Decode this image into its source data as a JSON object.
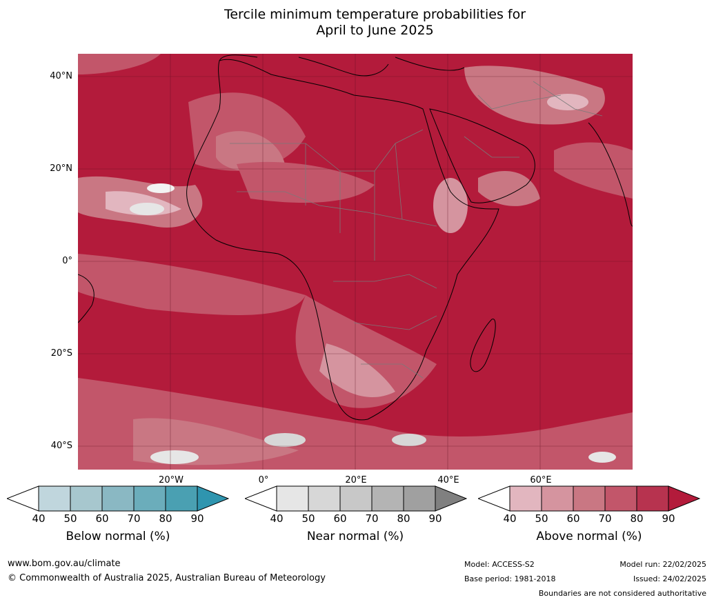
{
  "title": {
    "line1": "Tercile minimum temperature probabilities for",
    "line2": "April to June 2025"
  },
  "map": {
    "lat_labels": [
      "40°N",
      "20°N",
      "0°",
      "20°S",
      "40°S"
    ],
    "lon_labels": [
      "20°W",
      "0°",
      "20°E",
      "40°E",
      "60°E"
    ],
    "ocean_color": "#b31b3b"
  },
  "legends": [
    {
      "title": "Below normal (%)",
      "ticks": [
        "40",
        "50",
        "60",
        "70",
        "80",
        "90"
      ],
      "colors": [
        "#ffffff",
        "#c0d6dd",
        "#a7c7ce",
        "#8ab8c3",
        "#6badbb",
        "#4aa0b2",
        "#2f95af"
      ]
    },
    {
      "title": "Near normal (%)",
      "ticks": [
        "40",
        "50",
        "60",
        "70",
        "80",
        "90"
      ],
      "colors": [
        "#ffffff",
        "#e6e6e6",
        "#d7d7d7",
        "#c8c8c8",
        "#b4b4b4",
        "#a0a0a0",
        "#808080"
      ]
    },
    {
      "title": "Above normal (%)",
      "ticks": [
        "40",
        "50",
        "60",
        "70",
        "80",
        "90"
      ],
      "colors": [
        "#ffffff",
        "#e2b6bf",
        "#d5949f",
        "#c97783",
        "#c2566a",
        "#b7334f",
        "#b31b3b"
      ]
    }
  ],
  "footer": {
    "website": "www.bom.gov.au/climate",
    "copyright": "© Commonwealth of Australia 2025, Australian Bureau of Meteorology",
    "model": "Model: ACCESS-S2",
    "base_period": "Base period: 1981-2018",
    "model_run": "Model run: 22/02/2025",
    "issued": "Issued: 24/02/2025",
    "boundaries": "Boundaries are not considered authoritative"
  }
}
